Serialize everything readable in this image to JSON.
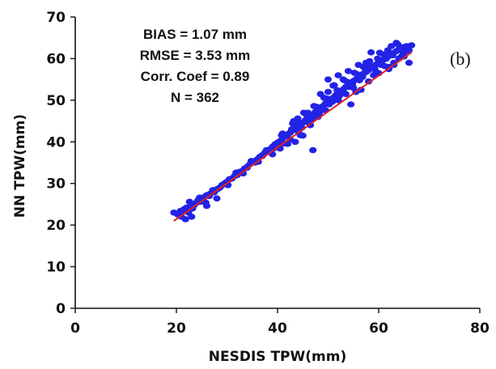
{
  "chart_data": {
    "type": "scatter",
    "panel_label": "(b)",
    "xlabel": "NESDIS TPW(mm)",
    "ylabel": "NN TPW(mm)",
    "xlim": [
      0,
      80
    ],
    "ylim": [
      0,
      70
    ],
    "xticks": [
      0,
      20,
      40,
      60,
      80
    ],
    "yticks": [
      0,
      10,
      20,
      30,
      40,
      50,
      60,
      70
    ],
    "grid": false,
    "stats": {
      "bias": "BIAS = 1.07 mm",
      "rmse": "RMSE = 3.53 mm",
      "corr": "Corr. Coef = 0.89",
      "n": "N = 362"
    },
    "point_color": "#2323e6",
    "fit_line_color": "#e02020",
    "fit_line": {
      "x": [
        19.5,
        66.5
      ],
      "y": [
        21.0,
        61.5
      ]
    },
    "points": {
      "x": [
        19.5,
        20.2,
        20.8,
        21.0,
        21.5,
        22.0,
        22.4,
        22.8,
        23.0,
        23.5,
        24.0,
        24.3,
        24.8,
        25.2,
        25.6,
        26.0,
        26.5,
        27.0,
        27.5,
        28.0,
        28.6,
        29.0,
        29.5,
        30.0,
        30.5,
        31.0,
        31.5,
        32.0,
        32.5,
        33.0,
        33.5,
        34.0,
        34.5,
        35.0,
        35.5,
        36.0,
        36.5,
        37.0,
        37.5,
        38.0,
        38.5,
        39.0,
        39.5,
        40.0,
        40.5,
        41.0,
        41.5,
        42.0,
        42.5,
        43.0,
        43.5,
        44.0,
        44.5,
        45.0,
        45.5,
        46.0,
        46.5,
        47.0,
        47.5,
        48.0,
        48.5,
        49.0,
        49.5,
        50.0,
        50.5,
        51.0,
        51.5,
        52.0,
        52.5,
        53.0,
        53.5,
        54.0,
        54.5,
        55.0,
        55.5,
        56.0,
        56.5,
        57.0,
        57.5,
        58.0,
        58.5,
        59.0,
        59.5,
        60.0,
        60.5,
        61.0,
        61.5,
        62.0,
        62.5,
        63.0,
        63.5,
        64.0,
        64.5,
        65.0,
        65.5,
        66.0,
        21.8,
        22.6,
        23.2,
        24.6,
        25.8,
        27.2,
        28.3,
        30.2,
        31.8,
        33.2,
        34.8,
        36.2,
        37.8,
        39.2,
        40.8,
        41.2,
        42.8,
        43.8,
        44.8,
        45.8,
        46.8,
        47.8,
        48.8,
        49.8,
        50.8,
        51.8,
        52.8,
        53.8,
        54.8,
        55.8,
        56.8,
        57.8,
        58.8,
        59.8,
        60.8,
        61.8,
        62.8,
        63.8,
        64.8,
        65.8,
        23.0,
        26.0,
        28.0,
        36.0,
        41.0,
        43.0,
        44.0,
        46.0,
        48.0,
        50.0,
        52.0,
        53.0,
        55.0,
        57.0,
        59.0,
        61.0,
        62.0,
        63.0,
        64.0,
        66.0,
        62.5,
        63.5,
        65.0,
        60.0,
        58.0,
        47.0,
        50.0,
        52.0,
        54.0,
        56.0,
        45.0,
        43.5,
        42.0,
        39.0,
        48.5,
        51.0,
        54.5,
        56.5,
        58.5,
        60.5,
        61.5,
        62.0,
        63.0,
        64.5,
        65.5,
        66.5,
        59.5,
        57.5,
        55.5,
        53.5,
        49.5,
        46.5,
        44.5,
        42.5,
        40.5,
        38.5,
        37.0,
        35.5,
        34.0,
        32.0,
        30.5,
        29.5,
        27.5,
        26.5,
        25.0,
        24.0,
        22.5,
        21.5,
        20.5,
        58.2,
        59.2,
        60.2,
        61.2,
        62.2,
        57.2,
        56.2,
        55.2,
        54.2,
        53.2,
        52.2,
        51.2,
        50.2,
        49.2,
        48.2,
        47.2,
        46.2,
        45.2,
        44.2,
        43.2
      ],
      "y": [
        23.0,
        22.6,
        23.4,
        22.0,
        23.8,
        24.2,
        23.0,
        24.6,
        25.0,
        24.8,
        25.4,
        26.0,
        25.6,
        26.2,
        26.8,
        27.2,
        27.0,
        27.8,
        28.2,
        28.6,
        29.0,
        29.6,
        30.0,
        30.4,
        31.0,
        31.2,
        31.8,
        32.2,
        32.8,
        33.0,
        33.6,
        34.0,
        34.6,
        35.0,
        35.4,
        35.8,
        36.4,
        36.8,
        37.4,
        37.8,
        38.2,
        38.8,
        39.4,
        39.8,
        40.2,
        40.8,
        41.4,
        41.8,
        42.2,
        42.8,
        43.2,
        43.8,
        44.4,
        44.6,
        45.2,
        45.8,
        46.2,
        46.6,
        47.2,
        47.8,
        48.2,
        48.6,
        49.2,
        49.6,
        50.2,
        50.6,
        51.2,
        51.6,
        52.0,
        52.6,
        53.2,
        53.6,
        54.0,
        54.6,
        55.0,
        55.4,
        56.0,
        56.4,
        56.8,
        57.2,
        57.8,
        58.2,
        58.6,
        59.0,
        59.4,
        59.8,
        60.2,
        60.6,
        61.0,
        61.4,
        61.8,
        62.2,
        62.4,
        62.8,
        63.0,
        62.0,
        21.4,
        25.6,
        24.0,
        26.6,
        25.4,
        28.4,
        28.8,
        29.6,
        32.6,
        32.4,
        35.4,
        35.2,
        38.0,
        38.4,
        41.6,
        39.6,
        43.0,
        44.6,
        43.4,
        46.4,
        45.6,
        48.4,
        47.6,
        50.4,
        49.6,
        52.4,
        51.8,
        54.4,
        53.8,
        56.2,
        55.6,
        58.4,
        57.8,
        60.0,
        59.6,
        62.0,
        60.8,
        63.4,
        61.6,
        62.6,
        22.0,
        24.6,
        26.4,
        35.6,
        42.0,
        44.4,
        45.6,
        47.0,
        46.0,
        52.0,
        50.0,
        55.0,
        53.0,
        58.0,
        56.0,
        61.0,
        58.0,
        59.0,
        60.0,
        59.0,
        63.0,
        63.8,
        60.5,
        56.5,
        54.5,
        38.0,
        55.0,
        56.0,
        57.0,
        58.5,
        41.5,
        40.0,
        39.5,
        37.0,
        51.5,
        53.5,
        49.0,
        52.5,
        61.5,
        58.5,
        60.0,
        57.5,
        58.5,
        60.5,
        61.8,
        63.2,
        56.8,
        59.0,
        52.0,
        51.5,
        47.6,
        44.0,
        41.6,
        40.6,
        38.4,
        37.6,
        36.6,
        35.0,
        33.8,
        32.0,
        31.0,
        29.8,
        27.9,
        27.4,
        25.9,
        25.4,
        23.6,
        23.4,
        22.4,
        59.4,
        57.6,
        61.4,
        58.2,
        60.8,
        57.8,
        54.8,
        56.6,
        53.2,
        54.8,
        51.0,
        53.6,
        49.0,
        50.6,
        46.6,
        48.6,
        44.6,
        47.0,
        42.2,
        45.0
      ]
    }
  }
}
